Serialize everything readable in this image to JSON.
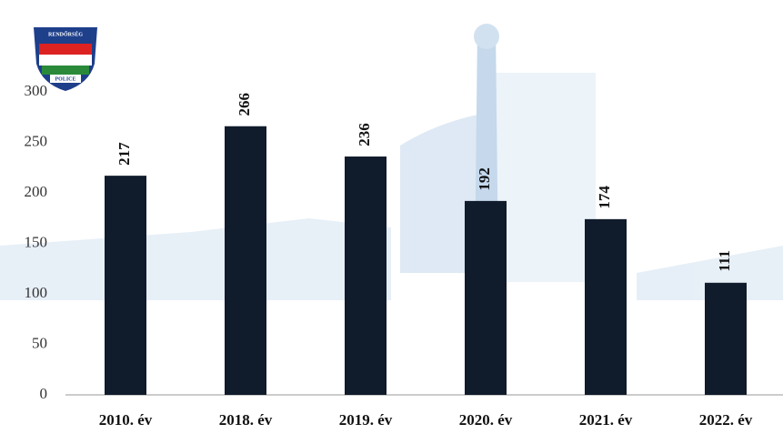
{
  "logo": {
    "title": "RENDŐRSÉG",
    "label": "POLICE"
  },
  "chart_data": {
    "type": "bar",
    "categories": [
      "2010. év",
      "2018. év",
      "2019. év",
      "2020. év",
      "2021. év",
      "2022. év"
    ],
    "values": [
      217,
      266,
      236,
      192,
      174,
      111
    ],
    "color": "#101b2b",
    "ylim": [
      0,
      300
    ],
    "yticks": [
      0,
      50,
      100,
      150,
      200,
      250,
      300
    ],
    "grid": false
  }
}
